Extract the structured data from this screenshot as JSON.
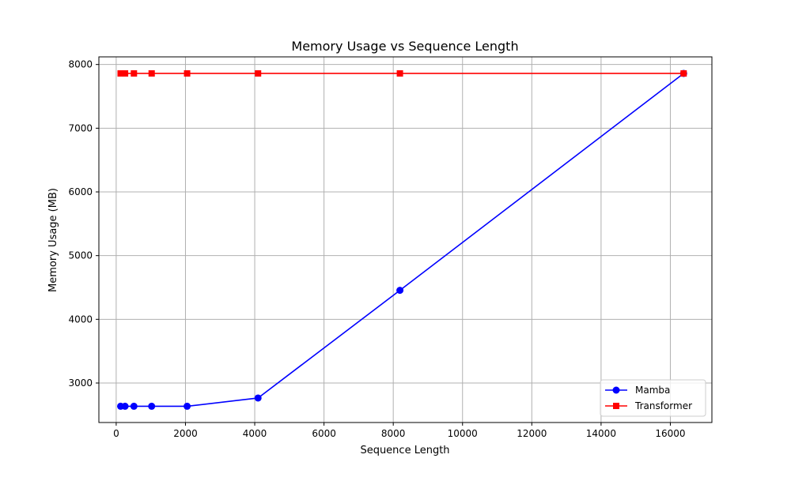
{
  "chart_data": {
    "type": "line",
    "title": "Memory Usage vs Sequence Length",
    "xlabel": "Sequence Length",
    "ylabel": "Memory Usage (MB)",
    "xlim": [
      -500,
      17200
    ],
    "ylim": [
      2380,
      8120
    ],
    "xticks": [
      0,
      2000,
      4000,
      6000,
      8000,
      10000,
      12000,
      14000,
      16000
    ],
    "yticks": [
      3000,
      4000,
      5000,
      6000,
      7000,
      8000
    ],
    "grid": true,
    "legend_position": "lower right",
    "series": [
      {
        "name": "Mamba",
        "color": "#0000ff",
        "marker": "circle",
        "x": [
          128,
          256,
          512,
          1024,
          2048,
          4096,
          8192,
          16384
        ],
        "y": [
          2635,
          2635,
          2635,
          2635,
          2635,
          2765,
          4455,
          7860
        ]
      },
      {
        "name": "Transformer",
        "color": "#ff0000",
        "marker": "square",
        "x": [
          128,
          256,
          512,
          1024,
          2048,
          4096,
          8192,
          16384
        ],
        "y": [
          7860,
          7860,
          7860,
          7860,
          7860,
          7860,
          7860,
          7860
        ]
      }
    ]
  }
}
